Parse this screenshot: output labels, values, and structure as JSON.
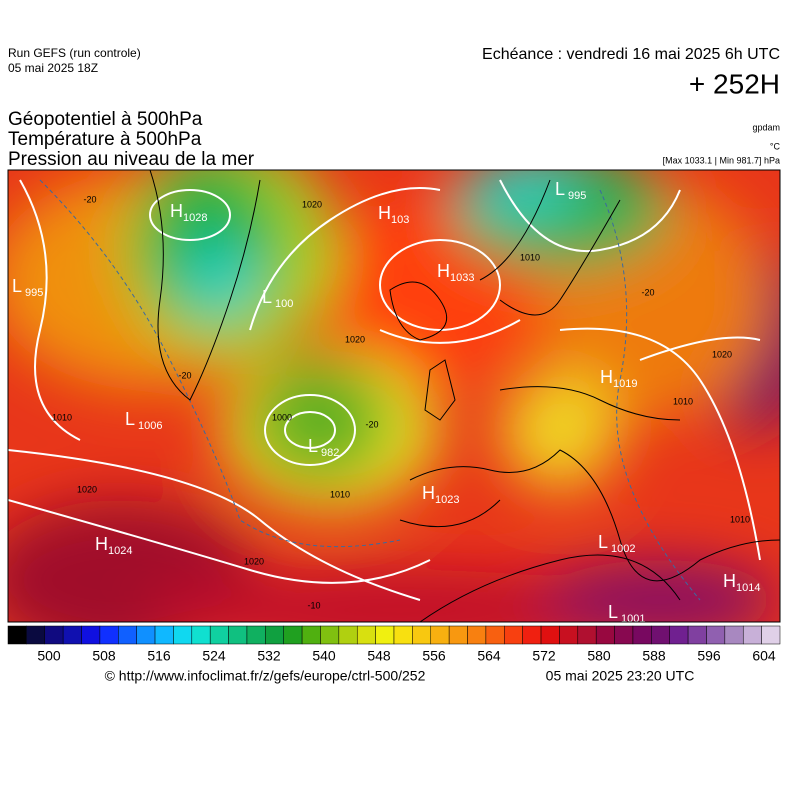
{
  "header": {
    "run": "Run GEFS (run controle)",
    "run_date": "05 mai 2025 18Z",
    "valid_time": "Echéance : vendredi 16 mai 2025 6h UTC",
    "lead": "+ 252H",
    "titles": [
      "Géopotentiel à 500hPa",
      "Température à 500hPa",
      "Pression au niveau de la mer"
    ],
    "units": [
      "gpdam",
      "°C",
      "[Max 1033.1 | Min 981.7] hPa"
    ]
  },
  "pressure_centers": [
    {
      "kind": "H",
      "value": "1028"
    },
    {
      "kind": "H",
      "value": "103"
    },
    {
      "kind": "L",
      "value": "995"
    },
    {
      "kind": "L",
      "value": "100"
    },
    {
      "kind": "H",
      "value": "1033"
    },
    {
      "kind": "L",
      "value": "995"
    },
    {
      "kind": "H",
      "value": "1019"
    },
    {
      "kind": "L",
      "value": "1006"
    },
    {
      "kind": "L",
      "value": "982"
    },
    {
      "kind": "H",
      "value": "1023"
    },
    {
      "kind": "H",
      "value": "1024"
    },
    {
      "kind": "L",
      "value": "1002"
    },
    {
      "kind": "H",
      "value": "1014"
    },
    {
      "kind": "L",
      "value": "1001"
    }
  ],
  "contour_labels": [
    "-20",
    "1020",
    "1010",
    "1020",
    "1010",
    "1020",
    "1000",
    "1010",
    "1020",
    "-20",
    "1020",
    "1010",
    "1010",
    "-10",
    "-20",
    "-20"
  ],
  "colorbar": {
    "ticks": [
      500,
      508,
      516,
      524,
      532,
      540,
      548,
      556,
      564,
      572,
      580,
      588,
      596,
      604
    ],
    "colors": [
      "#000000",
      "#0a0a40",
      "#100a80",
      "#1010b0",
      "#1010e0",
      "#1030ff",
      "#1060ff",
      "#1090ff",
      "#10b8ff",
      "#10d8f0",
      "#10e0d0",
      "#10d0a0",
      "#10c080",
      "#10b060",
      "#10a040",
      "#20a020",
      "#50b010",
      "#80c010",
      "#b0d010",
      "#d8e010",
      "#f0f010",
      "#f8e010",
      "#f8c810",
      "#f8b010",
      "#f89810",
      "#f88010",
      "#f86010",
      "#f84010",
      "#f02010",
      "#e01010",
      "#c81020",
      "#b01030",
      "#980840",
      "#880850",
      "#780860",
      "#701070",
      "#702090",
      "#8040a0",
      "#9060b0",
      "#a888c0",
      "#c8b0d8",
      "#e0d0e8"
    ]
  },
  "footer": {
    "source": "© http://www.infoclimat.fr/z/gefs/europe/ctrl-500/252",
    "issued": "05 mai 2025 23:20 UTC"
  }
}
